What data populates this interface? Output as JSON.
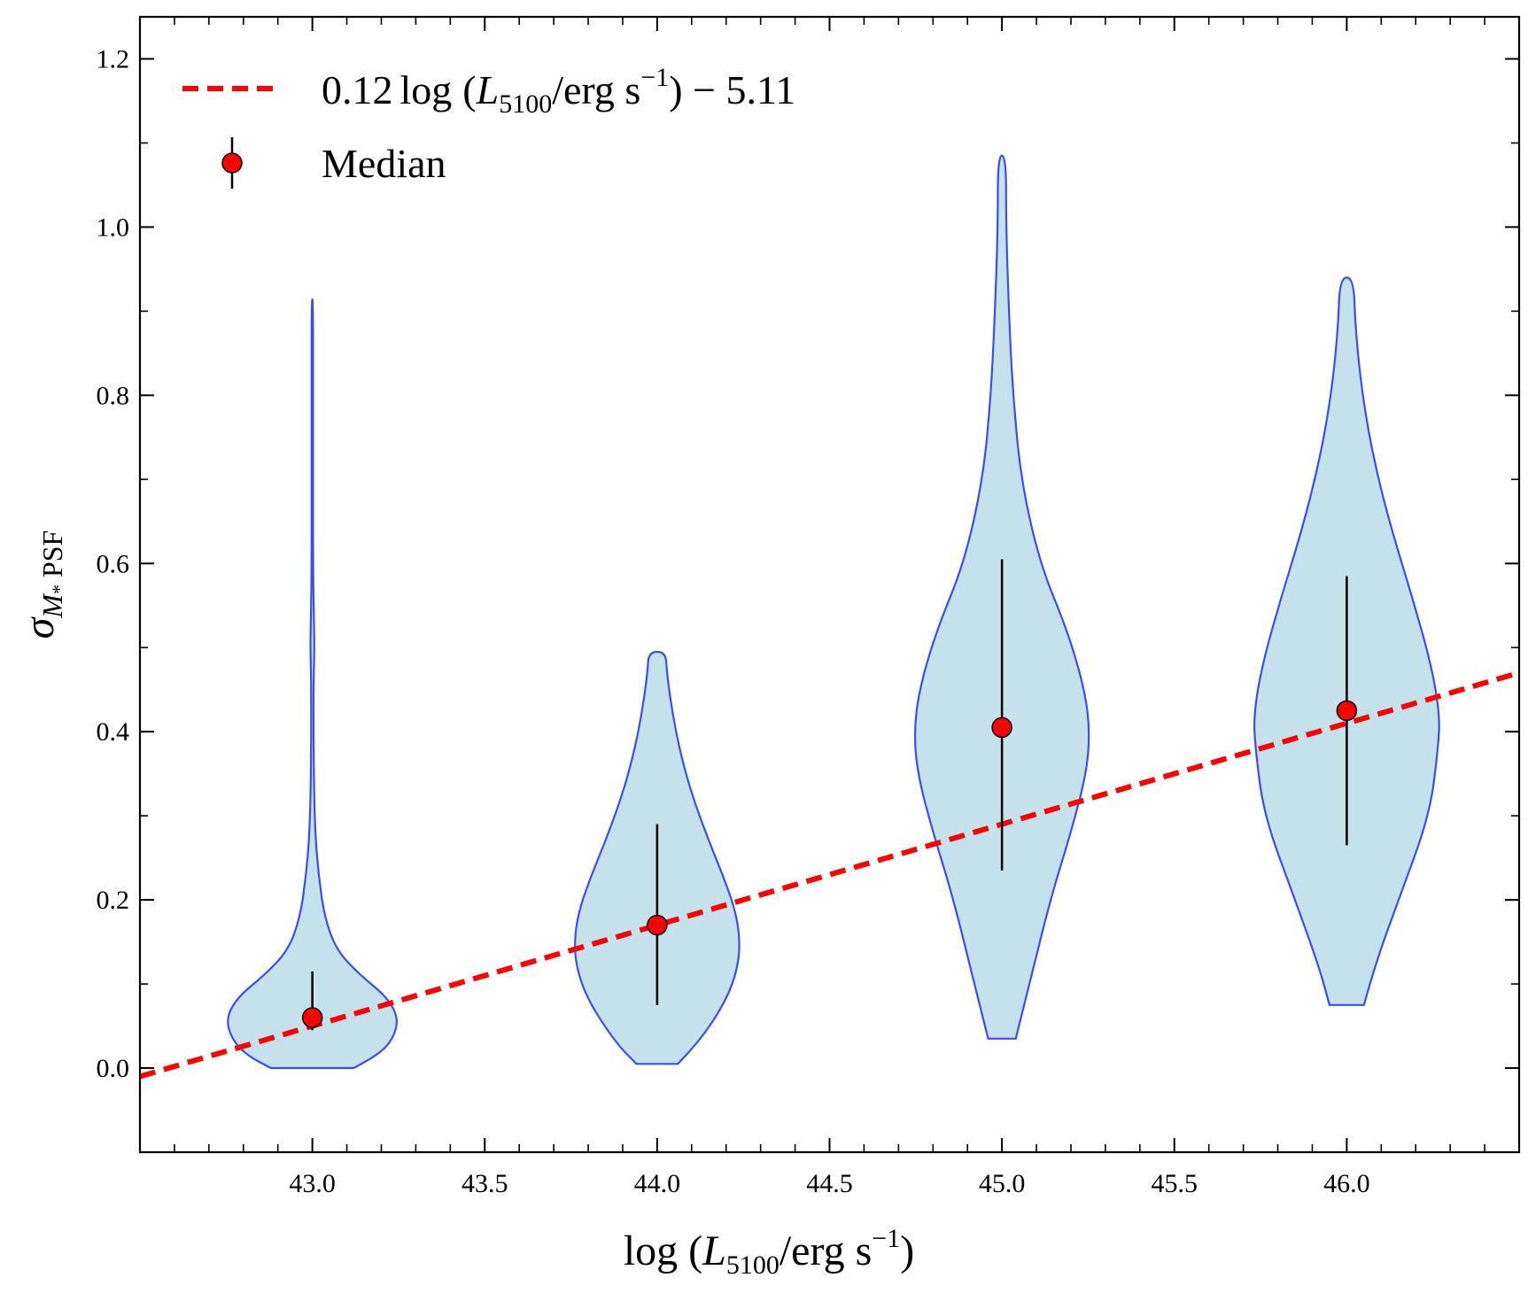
{
  "chart_data": {
    "type": "violin",
    "title": "",
    "xlabel": {
      "prefix": "log (",
      "var": "L",
      "sub": "5100",
      "mid": "/erg s",
      "sup": "−1",
      "suffix": ")"
    },
    "ylabel": {
      "var": "σ",
      "sub": "M",
      "subsub": "*",
      "rest": " PSF"
    },
    "xlim": [
      42.5,
      46.5
    ],
    "ylim": [
      -0.1,
      1.25
    ],
    "xticks": [
      43.0,
      43.5,
      44.0,
      44.5,
      45.0,
      45.5,
      46.0
    ],
    "xtick_labels": [
      "43.0",
      "43.5",
      "44.0",
      "44.5",
      "45.0",
      "45.5",
      "46.0"
    ],
    "yticks": [
      0.0,
      0.2,
      0.4,
      0.6,
      0.8,
      1.0,
      1.2
    ],
    "ytick_labels": [
      "0.0",
      "0.2",
      "0.4",
      "0.6",
      "0.8",
      "1.0",
      "1.2"
    ],
    "fit_line": {
      "slope": 0.12,
      "intercept": -5.11,
      "color": "#ff0000",
      "label_parts": {
        "coef": "0.12",
        "log": "log",
        "var": "L",
        "sub": "5100",
        "unit": "/erg s",
        "sup": "−1",
        "tail": ") − 5.11"
      }
    },
    "median_label": "Median",
    "violin_fill": "#c5e2ec",
    "violin_edge": "#3b4ee8",
    "median_color": "#ff0000",
    "violins": [
      {
        "x": 43.0,
        "median": 0.06,
        "err_low": 0.045,
        "err_high": 0.115,
        "profile": [
          [
            0.0,
            0.12
          ],
          [
            0.015,
            0.19
          ],
          [
            0.035,
            0.235
          ],
          [
            0.06,
            0.25
          ],
          [
            0.085,
            0.215
          ],
          [
            0.11,
            0.14
          ],
          [
            0.14,
            0.07
          ],
          [
            0.18,
            0.035
          ],
          [
            0.23,
            0.018
          ],
          [
            0.28,
            0.008
          ],
          [
            0.35,
            0.004
          ],
          [
            0.45,
            0.003
          ],
          [
            0.5,
            0.006
          ],
          [
            0.54,
            0.004
          ],
          [
            0.6,
            0.002
          ],
          [
            0.7,
            0.002
          ],
          [
            0.8,
            0.002
          ],
          [
            0.914,
            0.002
          ]
        ]
      },
      {
        "x": 44.0,
        "median": 0.17,
        "err_low": 0.075,
        "err_high": 0.29,
        "profile": [
          [
            0.005,
            0.06
          ],
          [
            0.03,
            0.12
          ],
          [
            0.08,
            0.2
          ],
          [
            0.12,
            0.235
          ],
          [
            0.155,
            0.24
          ],
          [
            0.19,
            0.225
          ],
          [
            0.23,
            0.19
          ],
          [
            0.27,
            0.15
          ],
          [
            0.32,
            0.105
          ],
          [
            0.37,
            0.07
          ],
          [
            0.42,
            0.045
          ],
          [
            0.47,
            0.028
          ],
          [
            0.495,
            0.025
          ]
        ]
      },
      {
        "x": 45.0,
        "median": 0.405,
        "err_low": 0.235,
        "err_high": 0.605,
        "profile": [
          [
            0.035,
            0.04
          ],
          [
            0.1,
            0.08
          ],
          [
            0.2,
            0.14
          ],
          [
            0.28,
            0.2
          ],
          [
            0.35,
            0.245
          ],
          [
            0.4,
            0.255
          ],
          [
            0.45,
            0.24
          ],
          [
            0.52,
            0.19
          ],
          [
            0.6,
            0.11
          ],
          [
            0.7,
            0.055
          ],
          [
            0.8,
            0.032
          ],
          [
            0.9,
            0.02
          ],
          [
            1.0,
            0.012
          ],
          [
            1.085,
            0.012
          ]
        ]
      },
      {
        "x": 46.0,
        "median": 0.425,
        "err_low": 0.265,
        "err_high": 0.585,
        "profile": [
          [
            0.075,
            0.05
          ],
          [
            0.12,
            0.08
          ],
          [
            0.2,
            0.15
          ],
          [
            0.3,
            0.24
          ],
          [
            0.38,
            0.265
          ],
          [
            0.42,
            0.27
          ],
          [
            0.48,
            0.245
          ],
          [
            0.56,
            0.19
          ],
          [
            0.64,
            0.13
          ],
          [
            0.72,
            0.08
          ],
          [
            0.8,
            0.045
          ],
          [
            0.88,
            0.025
          ],
          [
            0.94,
            0.02
          ]
        ]
      }
    ]
  }
}
